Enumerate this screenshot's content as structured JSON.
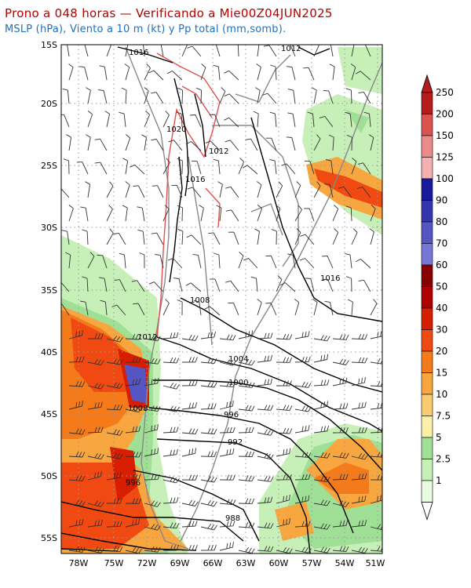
{
  "title": "Prono a 048 horas — Verificando a Mie00Z04JUN2025",
  "subtitle": "MSLP (hPa), Viento a 10 m (kt) y Pp total (mm,somb).",
  "latitude_labels": [
    "15S",
    "20S",
    "25S",
    "30S",
    "35S",
    "40S",
    "45S",
    "50S",
    "55S"
  ],
  "longitude_labels": [
    "78W",
    "75W",
    "72W",
    "69W",
    "66W",
    "63W",
    "60W",
    "57W",
    "54W",
    "51W"
  ],
  "isobar_labels": [
    "1016",
    "1012",
    "1020",
    "1012",
    "1016",
    "1008",
    "1012",
    "1016",
    "1004",
    "1000",
    "1008",
    "996",
    "992",
    "996",
    "988"
  ],
  "colorbar": {
    "labels": [
      "250",
      "200",
      "150",
      "125",
      "100",
      "90",
      "80",
      "70",
      "60",
      "50",
      "40",
      "30",
      "20",
      "15",
      "10",
      "7.5",
      "5",
      "2.5",
      "1"
    ],
    "colors": [
      "#b71c1c",
      "#d9534f",
      "#ea8a8a",
      "#f4b0b0",
      "#1a1a9c",
      "#3535b0",
      "#5555c4",
      "#7676d6",
      "#8a0000",
      "#b00000",
      "#d81e00",
      "#f04a12",
      "#f47a1a",
      "#f7a640",
      "#f9cc70",
      "#fcefa8",
      "#9fe096",
      "#c6f0b8",
      "#e8fae0"
    ]
  }
}
